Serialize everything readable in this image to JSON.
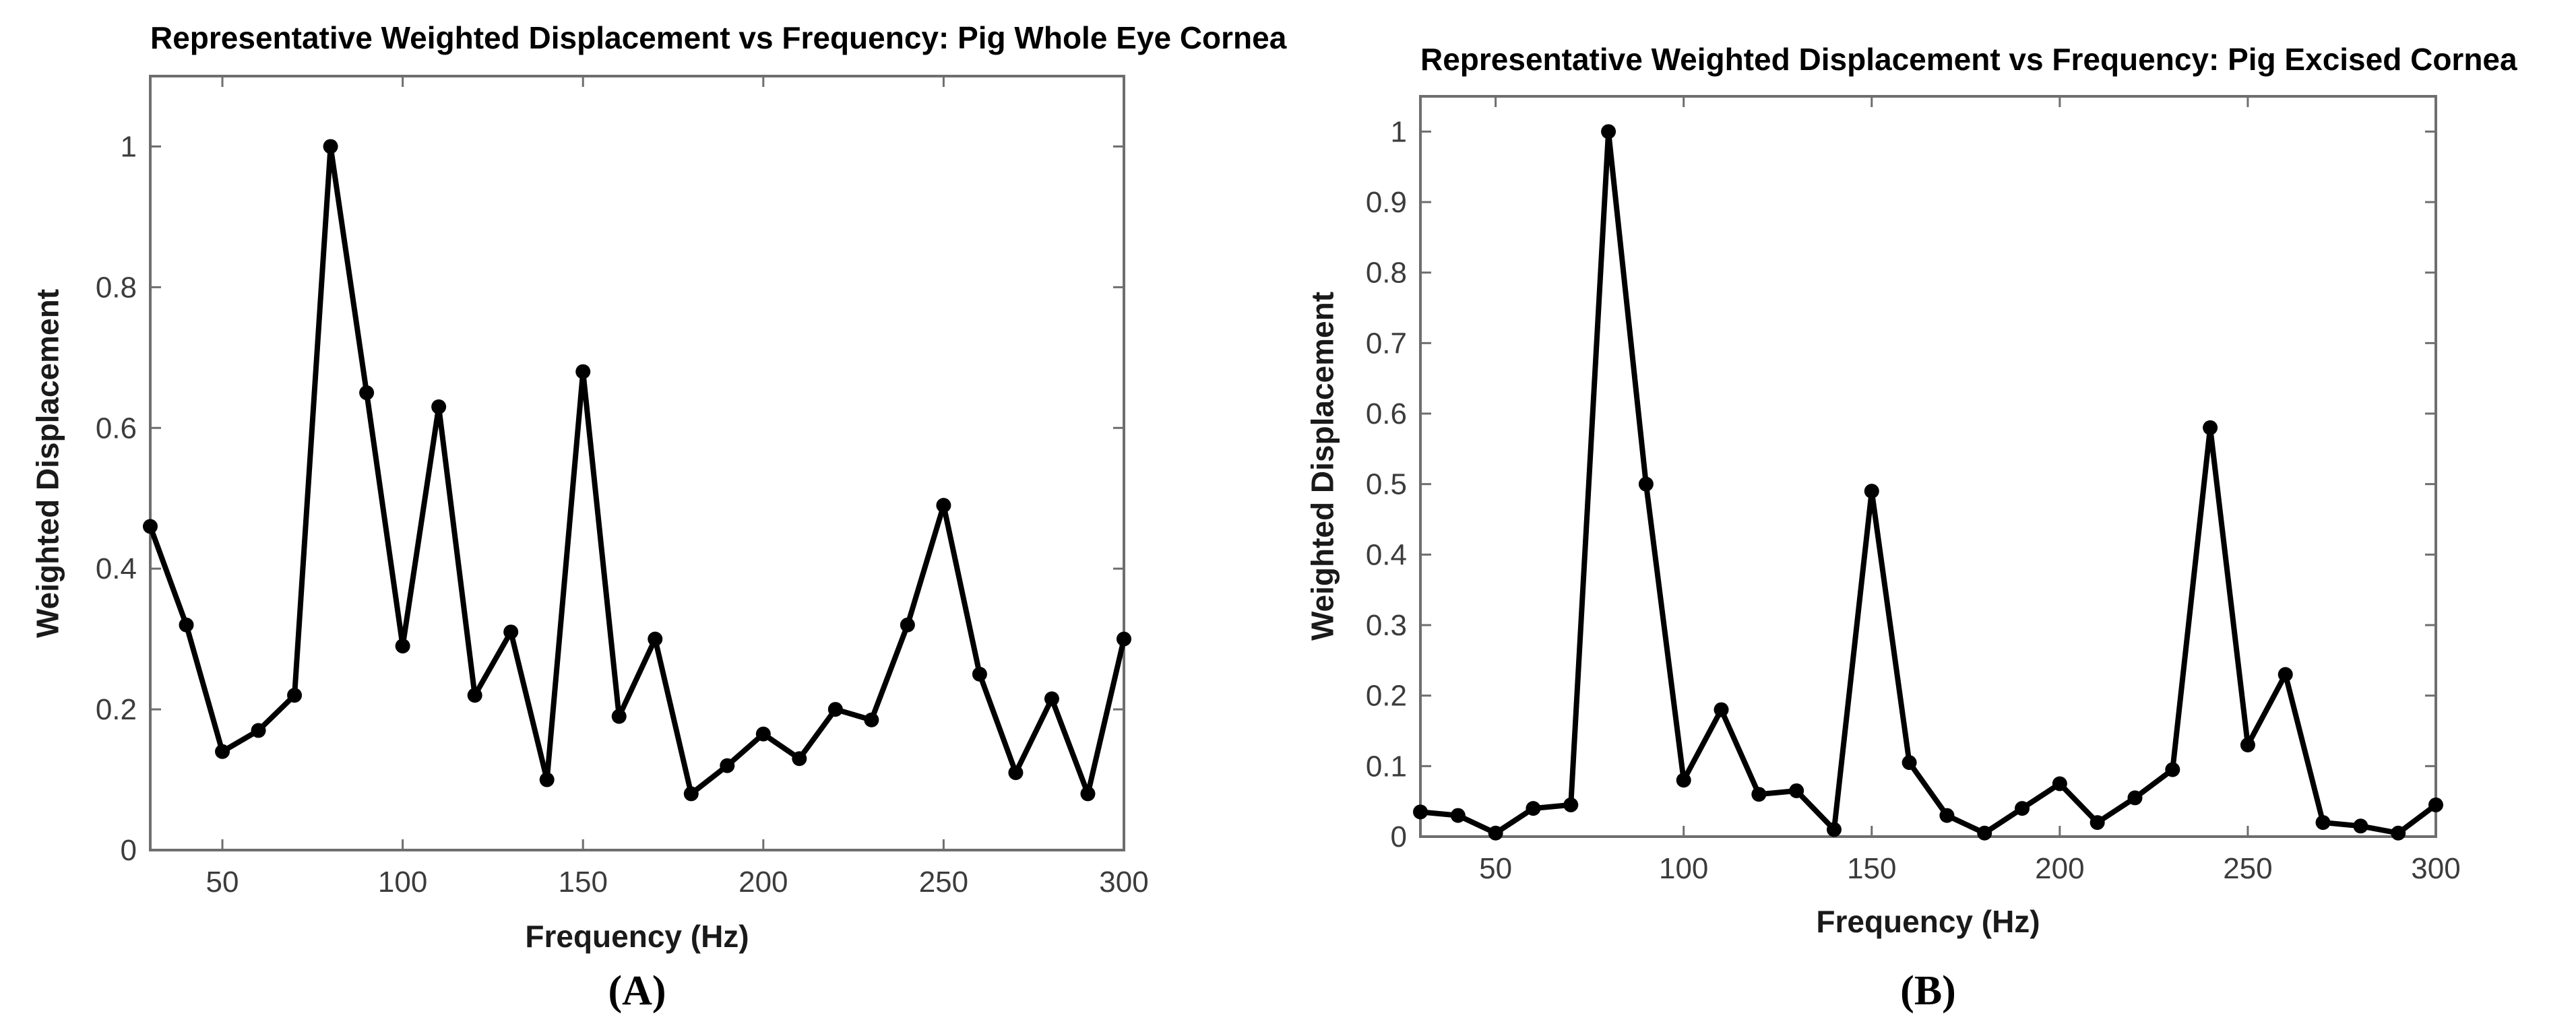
{
  "page": {
    "background": "#ffffff",
    "kind": "two-panel scientific line-chart figure"
  },
  "figure": {
    "panels": [
      {
        "label": "(A)"
      },
      {
        "label": "(B)"
      }
    ]
  },
  "chart_data": [
    {
      "type": "line",
      "title": "Representative Weighted Displacement vs Frequency: Pig Whole Eye Cornea",
      "xlabel": "Frequency (Hz)",
      "ylabel": "Weighted Displacement",
      "x": [
        30,
        40,
        50,
        60,
        70,
        80,
        90,
        100,
        110,
        120,
        130,
        140,
        150,
        160,
        170,
        180,
        190,
        200,
        210,
        220,
        230,
        240,
        250,
        260,
        270,
        280,
        290,
        300
      ],
      "y": [
        0.46,
        0.32,
        0.14,
        0.17,
        0.22,
        1.0,
        0.65,
        0.29,
        0.63,
        0.22,
        0.31,
        0.1,
        0.68,
        0.19,
        0.3,
        0.08,
        0.12,
        0.165,
        0.13,
        0.2,
        0.185,
        0.32,
        0.49,
        0.25,
        0.11,
        0.215,
        0.08,
        0.3
      ],
      "xlim": [
        30,
        300
      ],
      "ylim": [
        0,
        1.1
      ],
      "xticks": [
        50,
        100,
        150,
        200,
        250,
        300
      ],
      "xtick_labels": [
        "50",
        "100",
        "150",
        "200",
        "250",
        "300"
      ],
      "yticks": [
        0,
        0.2,
        0.4,
        0.6,
        0.8,
        1
      ],
      "ytick_labels": [
        "0",
        "0.2",
        "0.4",
        "0.6",
        "0.8",
        "1"
      ],
      "grid": false,
      "marker": "filled-circle",
      "line_color": "#000000"
    },
    {
      "type": "line",
      "title": "Representative Weighted Displacement vs Frequency: Pig Excised Cornea",
      "xlabel": "Frequency (Hz)",
      "ylabel": "Weighted Displacement",
      "x": [
        30,
        40,
        50,
        60,
        70,
        80,
        90,
        100,
        110,
        120,
        130,
        140,
        150,
        160,
        170,
        180,
        190,
        200,
        210,
        220,
        230,
        240,
        250,
        260,
        270,
        280,
        290,
        300
      ],
      "y": [
        0.035,
        0.03,
        0.005,
        0.04,
        0.045,
        1.0,
        0.5,
        0.08,
        0.18,
        0.06,
        0.065,
        0.01,
        0.49,
        0.105,
        0.03,
        0.005,
        0.04,
        0.075,
        0.02,
        0.055,
        0.095,
        0.58,
        0.13,
        0.23,
        0.02,
        0.015,
        0.005,
        0.045
      ],
      "xlim": [
        30,
        300
      ],
      "ylim": [
        0,
        1.05
      ],
      "xticks": [
        50,
        100,
        150,
        200,
        250,
        300
      ],
      "xtick_labels": [
        "50",
        "100",
        "150",
        "200",
        "250",
        "300"
      ],
      "yticks": [
        0,
        0.1,
        0.2,
        0.3,
        0.4,
        0.5,
        0.6,
        0.7,
        0.8,
        0.9,
        1
      ],
      "ytick_labels": [
        "0",
        "0.1",
        "0.2",
        "0.3",
        "0.4",
        "0.5",
        "0.6",
        "0.7",
        "0.8",
        "0.9",
        "1"
      ],
      "grid": false,
      "marker": "filled-circle",
      "line_color": "#000000"
    }
  ],
  "style": {
    "axis_color": "#6e6e6e",
    "tick_label_color": "#3c3c3c",
    "title_color": "#000000",
    "line_color": "#000000",
    "marker_color": "#000000"
  }
}
